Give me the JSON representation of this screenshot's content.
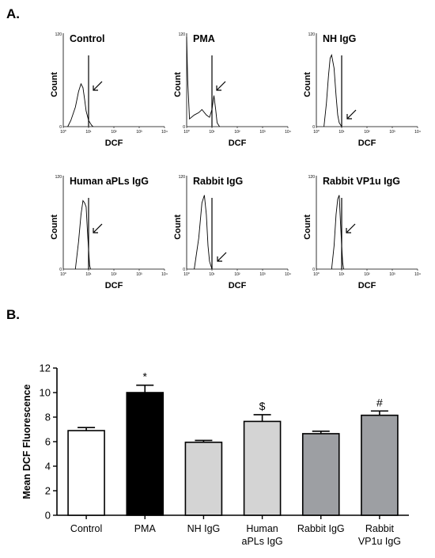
{
  "panels": {
    "a_label": "A.",
    "b_label": "B."
  },
  "chart_data": [
    {
      "type": "line",
      "subtype": "flow-cytometry-histograms",
      "x_axis_label": "DCF",
      "y_axis_label": "Count",
      "y_max_tick": "120",
      "y_min_tick": "0",
      "x_ticks": [
        "10⁰",
        "10¹",
        "10²",
        "10³",
        "10⁴"
      ],
      "x_scale": "log",
      "x_range": [
        1,
        10000
      ],
      "y_range": [
        0,
        120
      ],
      "histograms": [
        {
          "title": "Control",
          "gate_x": 10,
          "arrow": "right",
          "curve": [
            [
              1.5,
              0
            ],
            [
              2,
              8
            ],
            [
              3,
              25
            ],
            [
              4,
              45
            ],
            [
              5,
              55
            ],
            [
              6,
              50
            ],
            [
              7,
              35
            ],
            [
              8,
              20
            ],
            [
              10,
              8
            ],
            [
              13,
              2
            ],
            [
              15,
              0
            ]
          ]
        },
        {
          "title": "PMA",
          "gate_x": 10,
          "arrow": "right",
          "curve": [
            [
              1,
              115
            ],
            [
              1.1,
              60
            ],
            [
              1.3,
              10
            ],
            [
              2,
              15
            ],
            [
              3,
              18
            ],
            [
              4,
              22
            ],
            [
              6,
              15
            ],
            [
              8,
              12
            ],
            [
              10,
              22
            ],
            [
              12,
              40
            ],
            [
              14,
              22
            ],
            [
              16,
              5
            ],
            [
              20,
              0
            ]
          ]
        },
        {
          "title": "NH IgG",
          "gate_x": 10,
          "arrow": "below",
          "curve": [
            [
              2,
              0
            ],
            [
              2.5,
              30
            ],
            [
              3,
              65
            ],
            [
              3.5,
              88
            ],
            [
              4,
              92
            ],
            [
              5,
              75
            ],
            [
              6,
              40
            ],
            [
              7,
              15
            ],
            [
              8,
              5
            ],
            [
              10,
              0
            ]
          ]
        },
        {
          "title": "Human aPLs IgG",
          "gate_x": 10,
          "arrow": "right",
          "curve": [
            [
              3,
              0
            ],
            [
              4,
              35
            ],
            [
              5,
              70
            ],
            [
              6,
              88
            ],
            [
              7,
              85
            ],
            [
              8,
              80
            ],
            [
              9,
              50
            ],
            [
              10,
              25
            ],
            [
              11,
              5
            ],
            [
              12,
              0
            ]
          ]
        },
        {
          "title": "Rabbit IgG",
          "gate_x": 10,
          "arrow": "below",
          "curve": [
            [
              2,
              0
            ],
            [
              3,
              40
            ],
            [
              4,
              85
            ],
            [
              5,
              95
            ],
            [
              6,
              70
            ],
            [
              7,
              30
            ],
            [
              8,
              10
            ],
            [
              10,
              0
            ]
          ]
        },
        {
          "title": "Rabbit VP1u IgG",
          "gate_x": 10,
          "arrow": "right",
          "curve": [
            [
              4,
              0
            ],
            [
              5,
              30
            ],
            [
              6,
              70
            ],
            [
              7,
              90
            ],
            [
              8,
              95
            ],
            [
              9,
              60
            ],
            [
              10,
              30
            ],
            [
              11,
              8
            ],
            [
              12,
              0
            ]
          ]
        }
      ]
    },
    {
      "type": "bar",
      "categories": [
        "Control",
        "PMA",
        "NH IgG",
        "Human aPLs IgG",
        "Rabbit IgG",
        "Rabbit VP1u IgG"
      ],
      "category_lines": [
        [
          "Control"
        ],
        [
          "PMA"
        ],
        [
          "NH IgG"
        ],
        [
          "Human",
          "aPLs IgG"
        ],
        [
          "Rabbit IgG"
        ],
        [
          "Rabbit",
          "VP1u IgG"
        ]
      ],
      "values": [
        6.9,
        10.0,
        5.95,
        7.65,
        6.65,
        8.15
      ],
      "errors": [
        0.25,
        0.6,
        0.15,
        0.55,
        0.2,
        0.35
      ],
      "fills": [
        "#ffffff",
        "#000000",
        "#d4d4d4",
        "#d4d4d4",
        "#9d9fa3",
        "#9d9fa3"
      ],
      "annotations": [
        "",
        "*",
        "",
        "$",
        "",
        "#"
      ],
      "ylabel": "Mean DCF Fluorescence",
      "ylim": [
        0,
        12
      ],
      "yticks": [
        0,
        2,
        4,
        6,
        8,
        10,
        12
      ]
    }
  ]
}
